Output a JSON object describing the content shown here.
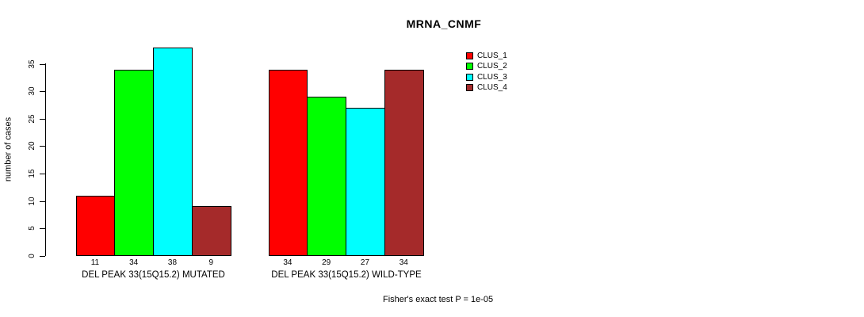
{
  "title": "MRNA_CNMF",
  "footer": "Fisher's exact test P = 1e-05",
  "chart_data": {
    "type": "bar",
    "title": "MRNA_CNMF",
    "xlabel": "",
    "ylabel": "number of cases",
    "ylim": [
      0,
      38
    ],
    "yticks": [
      0,
      5,
      10,
      15,
      20,
      25,
      30,
      35
    ],
    "grid": false,
    "legend_position": "right",
    "series": [
      {
        "name": "CLUS_1",
        "color": "#FF0000",
        "values": [
          11,
          34
        ]
      },
      {
        "name": "CLUS_2",
        "color": "#00FF00",
        "values": [
          34,
          29
        ]
      },
      {
        "name": "CLUS_3",
        "color": "#00FFFF",
        "values": [
          38,
          27
        ]
      },
      {
        "name": "CLUS_4",
        "color": "#A52A2A",
        "values": [
          9,
          34
        ]
      }
    ],
    "groups": [
      {
        "label": "DEL PEAK 33(15Q15.2) MUTATED",
        "values": [
          11,
          34,
          38,
          9
        ],
        "value_labels": [
          "11",
          "34",
          "38",
          "9"
        ]
      },
      {
        "label": "DEL PEAK 33(15Q15.2) WILD-TYPE",
        "values": [
          34,
          29,
          27,
          34
        ],
        "value_labels": [
          "34",
          "29",
          "27",
          "34"
        ]
      }
    ],
    "bar_border_color": "#000000",
    "annotation": "Fisher's exact test P = 1e-05"
  },
  "legend": {
    "items": [
      {
        "label": "CLUS_1",
        "color": "#FF0000"
      },
      {
        "label": "CLUS_2",
        "color": "#00FF00"
      },
      {
        "label": "CLUS_3",
        "color": "#00FFFF"
      },
      {
        "label": "CLUS_4",
        "color": "#A52A2A"
      }
    ]
  }
}
